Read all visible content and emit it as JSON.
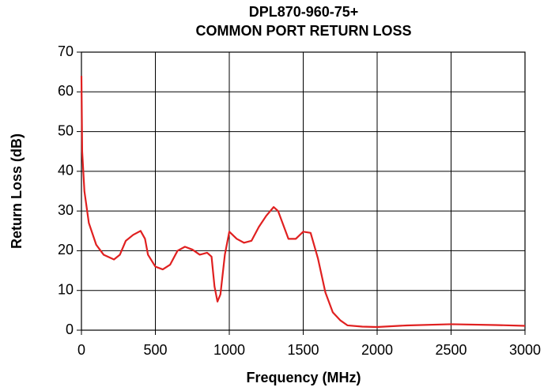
{
  "chart_data": {
    "type": "line",
    "title": [
      "DPL870-960-75+",
      "COMMON PORT RETURN LOSS"
    ],
    "xlabel": "Frequency (MHz)",
    "ylabel": "Return Loss (dB)",
    "x": [
      0,
      5,
      20,
      50,
      100,
      150,
      220,
      260,
      300,
      350,
      400,
      430,
      450,
      500,
      550,
      600,
      650,
      700,
      750,
      800,
      850,
      880,
      900,
      920,
      940,
      970,
      1000,
      1050,
      1100,
      1150,
      1200,
      1250,
      1300,
      1330,
      1400,
      1450,
      1500,
      1550,
      1600,
      1650,
      1700,
      1750,
      1800,
      1900,
      2000,
      2200,
      2500,
      2800,
      3000
    ],
    "series": [
      {
        "name": "Return Loss",
        "color": "#e02020",
        "values": [
          64,
          45,
          35,
          27,
          21.5,
          19,
          17.8,
          19,
          22.5,
          24,
          25,
          23,
          19,
          16,
          15.3,
          16.5,
          20,
          21,
          20.3,
          19,
          19.5,
          18.5,
          11,
          7.2,
          9,
          19,
          24.8,
          23,
          22,
          22.5,
          26,
          28.8,
          31,
          30,
          23,
          23,
          24.8,
          24.5,
          18,
          9.5,
          4.5,
          2.5,
          1.2,
          0.9,
          0.8,
          1.2,
          1.5,
          1.3,
          1.1
        ]
      }
    ],
    "xlim": [
      0,
      3000
    ],
    "xticks": [
      0,
      500,
      1000,
      1500,
      2000,
      2500,
      3000
    ],
    "ylim": [
      0,
      70
    ],
    "yticks": [
      0,
      10,
      20,
      30,
      40,
      50,
      60,
      70
    ],
    "grid": true
  }
}
